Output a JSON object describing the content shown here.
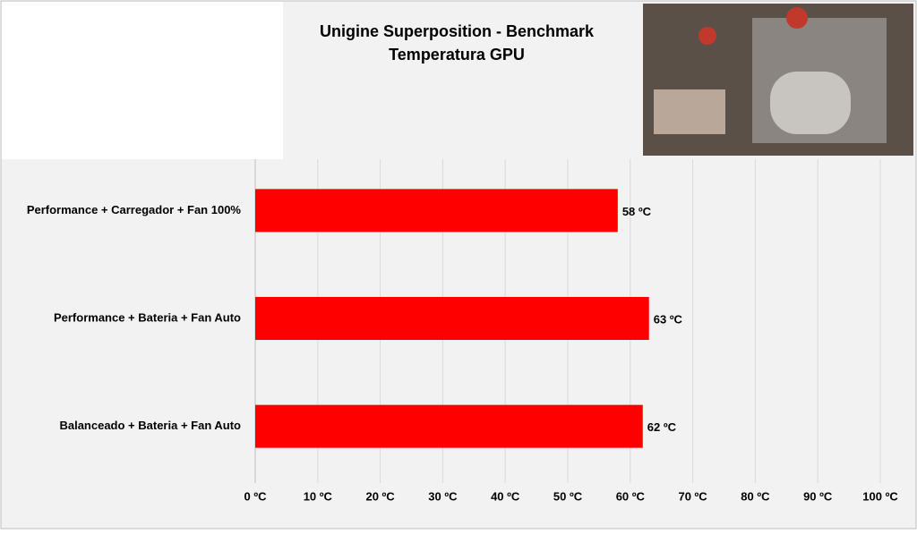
{
  "chart_data": {
    "type": "hbar",
    "title": "Unigine Superposition - Benchmark",
    "subtitle": "Temperatura GPU",
    "categories": [
      "Performance + Carregador + Fan 100%",
      "Performance + Bateria + Fan Auto",
      "Balanceado + Bateria + Fan Auto"
    ],
    "values": [
      58,
      63,
      62
    ],
    "value_labels": [
      "58 ºC",
      "63 ºC",
      "62 ºC"
    ],
    "color": "#ff0000",
    "xlim": [
      0,
      100
    ],
    "xticks": [
      {
        "value": 0,
        "label": "0 ºC"
      },
      {
        "value": 10,
        "label": "10 ºC"
      },
      {
        "value": 20,
        "label": "20 ºC"
      },
      {
        "value": 30,
        "label": "30 ºC"
      },
      {
        "value": 40,
        "label": "40 ºC"
      },
      {
        "value": 50,
        "label": "50 ºC"
      },
      {
        "value": 60,
        "label": "60 ºC"
      },
      {
        "value": 70,
        "label": "70 ºC"
      },
      {
        "value": 80,
        "label": "80 ºC"
      },
      {
        "value": 90,
        "label": "90 ºC"
      },
      {
        "value": 100,
        "label": "100 ºC"
      }
    ],
    "grid": true
  }
}
